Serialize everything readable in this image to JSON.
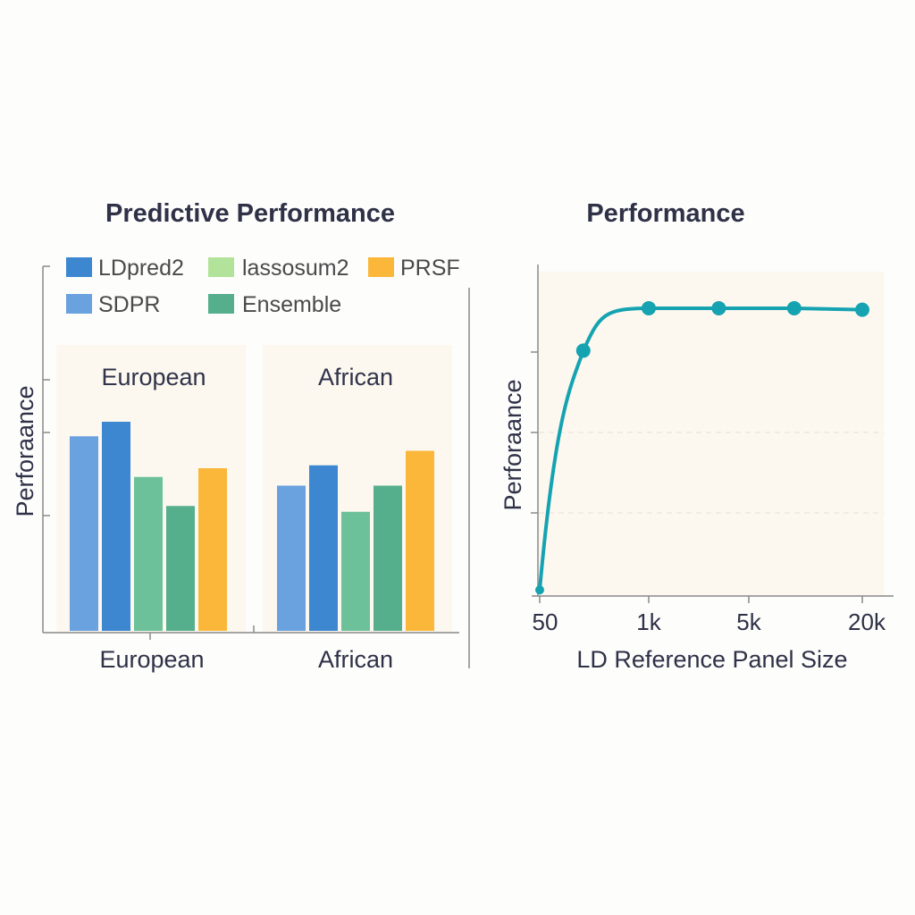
{
  "colors": {
    "LDpred2": "#3c87d0",
    "lassosum2": "#b3e39a",
    "PRSF": "#fbb73a",
    "SDPR": "#6aa1df",
    "Ensemble": "#55af8c",
    "lasso_bar": "#6dc19a",
    "line": "#15a3b1",
    "panel_bg": "#fcf8f0"
  },
  "chart_data": [
    {
      "type": "bar",
      "title": "Predictive Performance",
      "ylabel": "Perforaance",
      "categories": [
        "European",
        "African"
      ],
      "panel_titles": [
        "European",
        "African"
      ],
      "ylim": [
        0,
        1
      ],
      "legend": [
        "LDpred2",
        "lassosum2",
        "PRSF",
        "SDPR",
        "Ensemble"
      ],
      "series": [
        {
          "name": "SDPR",
          "values": [
            0.67,
            0.5
          ]
        },
        {
          "name": "LDpred2",
          "values": [
            0.72,
            0.57
          ]
        },
        {
          "name": "lassosum2",
          "values": [
            0.53,
            0.41
          ]
        },
        {
          "name": "Ensemble",
          "values": [
            0.43,
            0.5
          ]
        },
        {
          "name": "PRSF",
          "values": [
            0.56,
            0.62
          ]
        }
      ]
    },
    {
      "type": "line",
      "title": "Performance",
      "xlabel": "LD Reference Panel Size",
      "ylabel": "Perforaance",
      "x_tick_labels": [
        "50",
        "1k",
        "5k",
        "20k"
      ],
      "x_ticks": [
        0,
        1,
        2,
        3
      ],
      "x_points": [
        0.0,
        0.4,
        1.0,
        1.7,
        2.4,
        3.0
      ],
      "y_points": [
        0.02,
        0.81,
        0.95,
        0.95,
        0.95,
        0.945
      ],
      "ylim": [
        0,
        1
      ]
    }
  ]
}
